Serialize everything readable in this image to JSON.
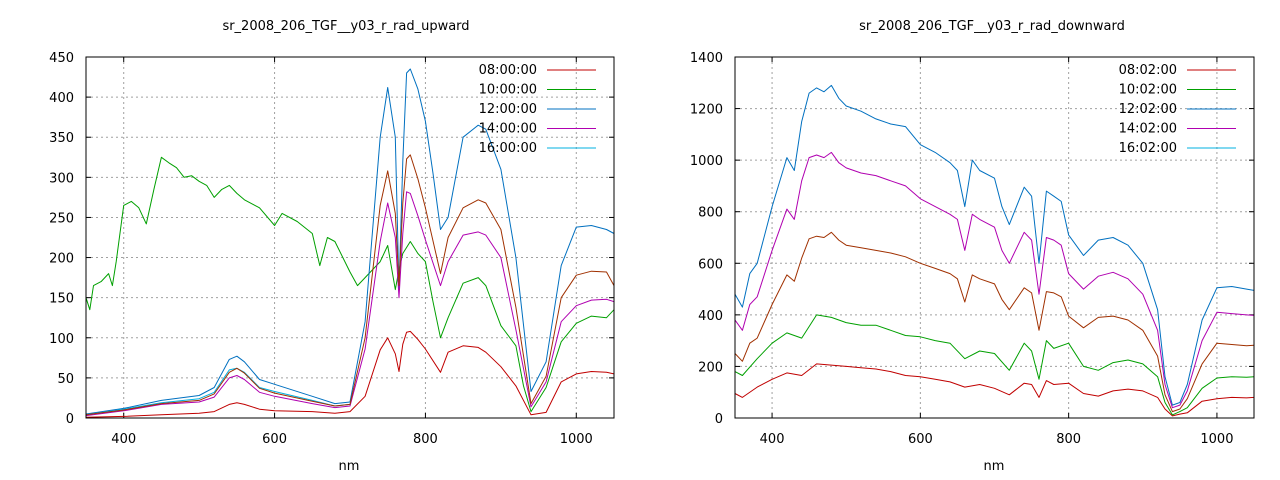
{
  "chart_data": [
    {
      "type": "line",
      "title": "sr_2008_206_TGF__y03_r_rad_upward",
      "xlabel": "nm",
      "ylabel": "",
      "xlim": [
        350,
        1050
      ],
      "ylim": [
        0,
        450
      ],
      "xticks": [
        400,
        600,
        800,
        1000
      ],
      "yticks": [
        0,
        50,
        100,
        150,
        200,
        250,
        300,
        350,
        400,
        450
      ],
      "grid": true,
      "legend_position": "top-right",
      "series": [
        {
          "name": "08:00:00",
          "color": "#c00000",
          "x": [
            350,
            400,
            450,
            500,
            520,
            540,
            550,
            560,
            580,
            600,
            650,
            680,
            700,
            720,
            740,
            750,
            760,
            765,
            770,
            775,
            780,
            790,
            800,
            820,
            830,
            850,
            870,
            880,
            900,
            920,
            940,
            960,
            980,
            1000,
            1020,
            1040,
            1050
          ],
          "y": [
            1,
            2,
            4,
            6,
            8,
            17,
            19,
            17,
            11,
            9,
            8,
            6,
            8,
            27,
            85,
            100,
            80,
            58,
            92,
            107,
            108,
            98,
            86,
            57,
            82,
            90,
            88,
            82,
            64,
            40,
            4,
            7,
            45,
            55,
            58,
            57,
            55
          ]
        },
        {
          "name": "10:00:00",
          "color": "#00a000",
          "x": [
            350,
            355,
            360,
            370,
            380,
            385,
            390,
            400,
            410,
            420,
            430,
            440,
            450,
            460,
            470,
            480,
            490,
            500,
            510,
            520,
            530,
            540,
            550,
            560,
            580,
            600,
            610,
            630,
            650,
            660,
            670,
            680,
            700,
            710,
            720,
            740,
            750,
            760,
            765,
            770,
            780,
            790,
            800,
            810,
            820,
            830,
            850,
            870,
            880,
            900,
            920,
            930,
            940,
            960,
            980,
            1000,
            1020,
            1040,
            1050
          ],
          "y": [
            150,
            135,
            165,
            170,
            180,
            165,
            195,
            265,
            270,
            262,
            242,
            285,
            325,
            318,
            312,
            300,
            302,
            295,
            290,
            275,
            285,
            290,
            280,
            272,
            262,
            240,
            255,
            245,
            230,
            190,
            225,
            220,
            182,
            165,
            175,
            195,
            215,
            160,
            185,
            205,
            220,
            205,
            195,
            145,
            100,
            125,
            168,
            175,
            165,
            115,
            90,
            40,
            8,
            38,
            95,
            118,
            127,
            125,
            135
          ]
        },
        {
          "name": "12:00:00",
          "color": "#0070c0",
          "x": [
            350,
            400,
            450,
            500,
            520,
            540,
            550,
            560,
            580,
            600,
            650,
            680,
            700,
            720,
            740,
            750,
            760,
            765,
            770,
            775,
            780,
            790,
            800,
            810,
            820,
            830,
            850,
            870,
            880,
            900,
            920,
            940,
            960,
            980,
            1000,
            1020,
            1040,
            1050
          ],
          "y": [
            5,
            12,
            22,
            28,
            38,
            73,
            77,
            70,
            48,
            42,
            27,
            18,
            20,
            120,
            350,
            412,
            350,
            160,
            320,
            430,
            435,
            410,
            370,
            305,
            235,
            250,
            350,
            365,
            360,
            310,
            200,
            33,
            70,
            190,
            238,
            240,
            235,
            230
          ]
        },
        {
          "name": "14:00:00",
          "color": "#b000b0",
          "x": [
            350,
            400,
            450,
            500,
            520,
            540,
            550,
            560,
            580,
            600,
            650,
            680,
            700,
            720,
            740,
            750,
            760,
            765,
            770,
            775,
            780,
            790,
            800,
            820,
            830,
            850,
            870,
            880,
            900,
            920,
            940,
            960,
            980,
            1000,
            1020,
            1040,
            1050
          ],
          "y": [
            3,
            9,
            17,
            20,
            26,
            50,
            53,
            48,
            32,
            27,
            18,
            13,
            15,
            86,
            220,
            268,
            225,
            150,
            230,
            282,
            280,
            252,
            222,
            165,
            195,
            228,
            232,
            228,
            200,
            110,
            14,
            45,
            120,
            140,
            147,
            148,
            145
          ]
        },
        {
          "name": "16:00:00",
          "color": "#00b0e0",
          "x": [
            350,
            400,
            450,
            500,
            520,
            540,
            550,
            560,
            580,
            600,
            650,
            680,
            700
          ],
          "y": [
            4,
            11,
            19,
            24,
            32,
            60,
            62,
            57,
            38,
            33,
            22,
            15,
            17
          ]
        },
        {
          "name": "",
          "color": "#a03000",
          "x": [
            350,
            400,
            450,
            500,
            520,
            540,
            550,
            560,
            580,
            600,
            650,
            680,
            700,
            720,
            740,
            750,
            760,
            765,
            770,
            775,
            780,
            790,
            800,
            820,
            830,
            850,
            870,
            880,
            900,
            920,
            940,
            960,
            980,
            1000,
            1020,
            1040,
            1050
          ],
          "y": [
            4,
            10,
            18,
            22,
            30,
            57,
            62,
            56,
            37,
            31,
            21,
            15,
            17,
            100,
            265,
            308,
            255,
            165,
            268,
            323,
            328,
            298,
            262,
            180,
            225,
            262,
            272,
            268,
            235,
            138,
            18,
            52,
            150,
            178,
            183,
            182,
            165
          ]
        }
      ]
    },
    {
      "type": "line",
      "title": "sr_2008_206_TGF__y03_r_rad_downward",
      "xlabel": "nm",
      "ylabel": "",
      "xlim": [
        350,
        1050
      ],
      "ylim": [
        0,
        1400
      ],
      "xticks": [
        400,
        600,
        800,
        1000
      ],
      "yticks": [
        0,
        200,
        400,
        600,
        800,
        1000,
        1200,
        1400
      ],
      "grid": true,
      "legend_position": "top-right",
      "series": [
        {
          "name": "08:02:00",
          "color": "#c00000",
          "x": [
            350,
            360,
            380,
            400,
            420,
            440,
            460,
            480,
            500,
            520,
            540,
            560,
            580,
            600,
            620,
            640,
            660,
            680,
            700,
            720,
            740,
            750,
            760,
            770,
            780,
            800,
            820,
            840,
            860,
            880,
            900,
            920,
            930,
            940,
            950,
            960,
            980,
            1000,
            1020,
            1040,
            1050
          ],
          "y": [
            95,
            80,
            120,
            150,
            175,
            165,
            210,
            205,
            200,
            195,
            190,
            180,
            165,
            160,
            150,
            140,
            120,
            130,
            115,
            90,
            135,
            130,
            80,
            145,
            130,
            135,
            95,
            85,
            105,
            112,
            105,
            80,
            35,
            8,
            15,
            20,
            65,
            75,
            80,
            78,
            80
          ]
        },
        {
          "name": "10:02:00",
          "color": "#00a000",
          "x": [
            350,
            360,
            380,
            400,
            420,
            440,
            460,
            480,
            500,
            520,
            540,
            560,
            580,
            600,
            620,
            640,
            660,
            680,
            700,
            720,
            740,
            750,
            760,
            770,
            780,
            800,
            820,
            840,
            860,
            880,
            900,
            920,
            930,
            940,
            950,
            960,
            980,
            1000,
            1020,
            1040,
            1050
          ],
          "y": [
            180,
            165,
            230,
            290,
            330,
            310,
            400,
            390,
            370,
            360,
            360,
            340,
            320,
            315,
            300,
            290,
            230,
            260,
            250,
            185,
            290,
            260,
            150,
            300,
            270,
            290,
            200,
            185,
            215,
            225,
            210,
            160,
            60,
            12,
            25,
            40,
            115,
            155,
            160,
            158,
            160
          ]
        },
        {
          "name": "12:02:00",
          "color": "#0070c0",
          "x": [
            350,
            360,
            370,
            380,
            400,
            420,
            430,
            440,
            450,
            460,
            470,
            480,
            490,
            500,
            520,
            540,
            560,
            580,
            600,
            620,
            640,
            650,
            660,
            670,
            680,
            700,
            710,
            720,
            740,
            750,
            760,
            770,
            780,
            790,
            800,
            820,
            840,
            860,
            880,
            900,
            920,
            930,
            940,
            950,
            960,
            980,
            1000,
            1020,
            1040,
            1050
          ],
          "y": [
            480,
            430,
            560,
            600,
            820,
            1010,
            960,
            1150,
            1260,
            1280,
            1265,
            1290,
            1240,
            1210,
            1190,
            1160,
            1140,
            1130,
            1060,
            1030,
            990,
            960,
            820,
            1000,
            960,
            930,
            820,
            750,
            895,
            860,
            600,
            880,
            860,
            840,
            710,
            630,
            690,
            700,
            670,
            600,
            420,
            160,
            50,
            60,
            130,
            380,
            505,
            510,
            500,
            495
          ]
        },
        {
          "name": "14:02:00",
          "color": "#b000b0",
          "x": [
            350,
            360,
            370,
            380,
            400,
            420,
            430,
            440,
            450,
            460,
            470,
            480,
            490,
            500,
            520,
            540,
            560,
            580,
            600,
            620,
            640,
            650,
            660,
            670,
            680,
            700,
            710,
            720,
            740,
            750,
            760,
            770,
            780,
            790,
            800,
            820,
            840,
            860,
            880,
            900,
            920,
            930,
            940,
            950,
            960,
            980,
            1000,
            1020,
            1040,
            1050
          ],
          "y": [
            380,
            340,
            440,
            470,
            650,
            810,
            770,
            920,
            1010,
            1020,
            1010,
            1030,
            990,
            970,
            950,
            940,
            920,
            900,
            850,
            820,
            790,
            770,
            650,
            790,
            770,
            740,
            650,
            600,
            720,
            690,
            480,
            700,
            690,
            670,
            560,
            500,
            550,
            565,
            540,
            480,
            340,
            130,
            40,
            50,
            105,
            300,
            410,
            405,
            400,
            398
          ]
        },
        {
          "name": "16:02:00",
          "color": "#00b0e0",
          "x": [],
          "y": []
        },
        {
          "name": "",
          "color": "#a03000",
          "x": [
            350,
            360,
            370,
            380,
            400,
            420,
            430,
            440,
            450,
            460,
            470,
            480,
            490,
            500,
            520,
            540,
            560,
            580,
            600,
            620,
            640,
            650,
            660,
            670,
            680,
            700,
            710,
            720,
            740,
            750,
            760,
            770,
            780,
            790,
            800,
            820,
            840,
            860,
            880,
            900,
            920,
            930,
            940,
            950,
            960,
            980,
            1000,
            1020,
            1040,
            1050
          ],
          "y": [
            250,
            220,
            290,
            310,
            440,
            555,
            530,
            620,
            695,
            705,
            700,
            720,
            690,
            670,
            660,
            650,
            640,
            625,
            600,
            580,
            560,
            540,
            450,
            555,
            540,
            520,
            460,
            420,
            505,
            485,
            340,
            490,
            485,
            470,
            395,
            350,
            390,
            395,
            380,
            340,
            240,
            90,
            25,
            35,
            75,
            210,
            290,
            285,
            280,
            282
          ]
        }
      ]
    }
  ]
}
